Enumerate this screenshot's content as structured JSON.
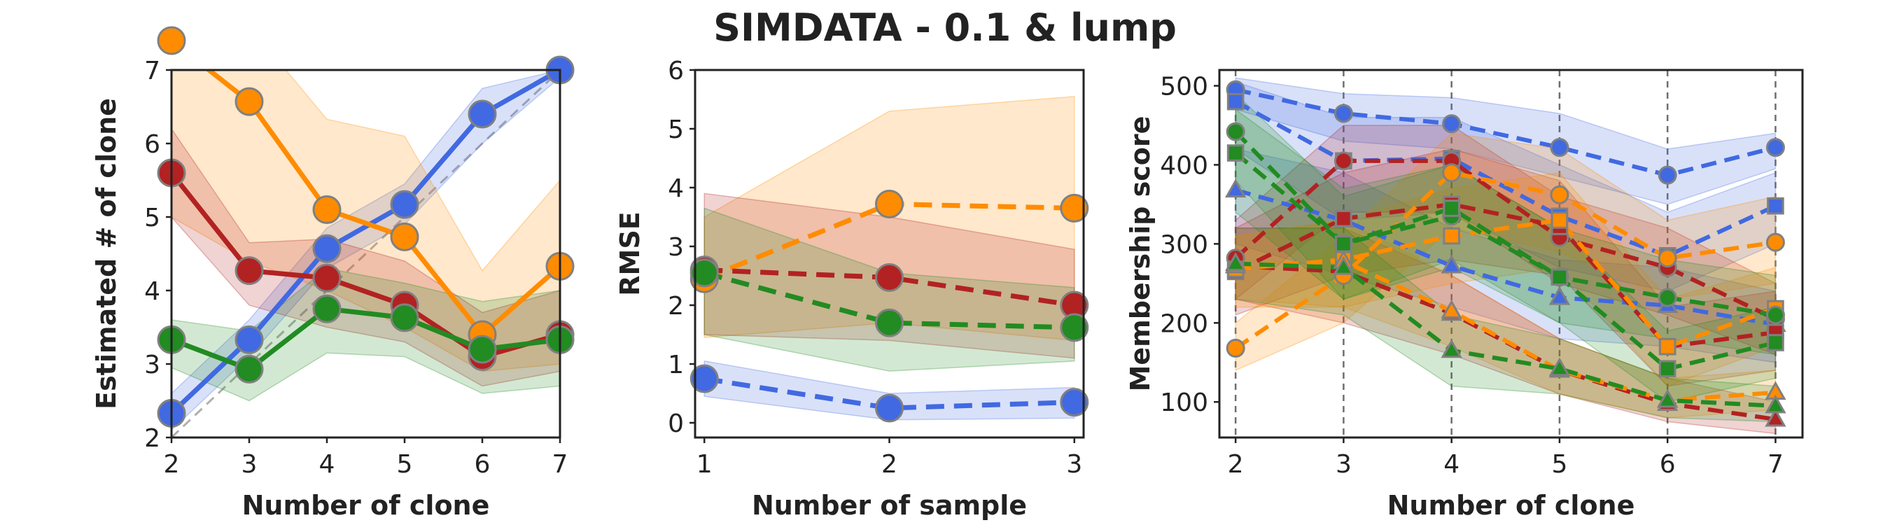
{
  "figure": {
    "title": "SIMDATA - 0.1 & lump"
  },
  "colors": {
    "blue": "#4169e1",
    "orange": "#ff8c00",
    "red": "#b22222",
    "green": "#228b22",
    "marker_edge": "#808080",
    "identity": "#b0b0b0"
  },
  "chart_data": [
    {
      "type": "line",
      "xlabel": "Number of clone",
      "ylabel": "Estimated # of clone",
      "xlim": [
        2,
        7
      ],
      "ylim": [
        2,
        7
      ],
      "xticks": [
        2,
        3,
        4,
        5,
        6,
        7
      ],
      "yticks": [
        2,
        3,
        4,
        5,
        6,
        7
      ],
      "grid": false,
      "identity_line": true,
      "series": [
        {
          "color": "blue",
          "linestyle": "solid",
          "x": [
            2,
            3,
            4,
            5,
            6,
            7
          ],
          "y": [
            2.33,
            3.33,
            4.57,
            5.17,
            6.4,
            7.0
          ],
          "lower": [
            2.1,
            3.1,
            4.3,
            4.9,
            6.0,
            6.9
          ],
          "upper": [
            2.6,
            3.6,
            4.85,
            5.45,
            6.75,
            7.0
          ]
        },
        {
          "color": "orange",
          "linestyle": "solid",
          "x": [
            2,
            3,
            4,
            5,
            6,
            7
          ],
          "y": [
            7.4,
            6.57,
            5.1,
            4.73,
            3.4,
            4.33
          ],
          "lower": [
            5.0,
            4.4,
            4.0,
            3.5,
            2.9,
            3.0
          ],
          "upper": [
            8.0,
            7.6,
            6.33,
            6.1,
            4.27,
            5.5
          ]
        },
        {
          "color": "red",
          "linestyle": "solid",
          "x": [
            2,
            3,
            4,
            5,
            6,
            7
          ],
          "y": [
            5.6,
            4.27,
            4.17,
            3.8,
            3.1,
            3.4
          ],
          "lower": [
            5.0,
            3.8,
            3.5,
            3.3,
            2.7,
            2.9
          ],
          "upper": [
            6.2,
            4.65,
            4.7,
            4.4,
            3.7,
            4.0
          ]
        },
        {
          "color": "green",
          "linestyle": "solid",
          "x": [
            2,
            3,
            4,
            5,
            6,
            7
          ],
          "y": [
            3.33,
            2.93,
            3.75,
            3.63,
            3.2,
            3.33
          ],
          "lower": [
            2.95,
            2.5,
            3.15,
            3.1,
            2.6,
            2.7
          ],
          "upper": [
            3.6,
            3.45,
            4.3,
            4.1,
            3.85,
            4.0
          ]
        }
      ]
    },
    {
      "type": "line",
      "xlabel": "Number of sample",
      "ylabel": "RMSE",
      "xlim": [
        0.95,
        3.05
      ],
      "ylim": [
        -0.25,
        6
      ],
      "xticks": [
        1,
        2,
        3
      ],
      "yticks": [
        0,
        1,
        2,
        3,
        4,
        5,
        6
      ],
      "grid": false,
      "series": [
        {
          "color": "orange",
          "linestyle": "dashed",
          "x": [
            1,
            2,
            3
          ],
          "y": [
            2.45,
            3.72,
            3.65
          ],
          "lower": [
            1.45,
            1.7,
            1.4
          ],
          "upper": [
            3.5,
            5.3,
            5.55
          ]
        },
        {
          "color": "red",
          "linestyle": "dashed",
          "x": [
            1,
            2,
            3
          ],
          "y": [
            2.6,
            2.47,
            2.0
          ],
          "lower": [
            1.5,
            1.4,
            1.1
          ],
          "upper": [
            3.9,
            3.5,
            2.95
          ]
        },
        {
          "color": "green",
          "linestyle": "dashed",
          "x": [
            1,
            2,
            3
          ],
          "y": [
            2.55,
            1.7,
            1.62
          ],
          "lower": [
            1.5,
            0.88,
            1.05
          ],
          "upper": [
            3.65,
            2.55,
            2.3
          ]
        },
        {
          "color": "blue",
          "linestyle": "dashed",
          "x": [
            1,
            2,
            3
          ],
          "y": [
            0.75,
            0.25,
            0.35
          ],
          "lower": [
            0.45,
            0.05,
            0.08
          ],
          "upper": [
            1.05,
            0.5,
            0.6
          ]
        }
      ]
    },
    {
      "type": "line",
      "xlabel": "Number of clone",
      "ylabel": "Membership score",
      "xlim": [
        1.85,
        7.25
      ],
      "ylim": [
        55,
        520
      ],
      "xticks": [
        2,
        3,
        4,
        5,
        6,
        7
      ],
      "yticks": [
        100,
        200,
        300,
        400,
        500
      ],
      "grid": false,
      "vlines": [
        2,
        3,
        4,
        5,
        6,
        7
      ],
      "series": [
        {
          "color": "blue",
          "marker": "circle",
          "linestyle": "dashed",
          "x": [
            2,
            3,
            4,
            5,
            6,
            7
          ],
          "y": [
            495,
            465,
            452,
            422,
            387,
            422
          ],
          "lower": [
            470,
            430,
            420,
            385,
            350,
            395
          ],
          "upper": [
            510,
            490,
            485,
            465,
            420,
            440
          ]
        },
        {
          "color": "blue",
          "marker": "square",
          "linestyle": "dashed",
          "x": [
            2,
            3,
            4,
            5,
            6,
            7
          ],
          "y": [
            480,
            405,
            408,
            335,
            285,
            348
          ],
          "lower": [
            420,
            330,
            340,
            270,
            240,
            300
          ],
          "upper": [
            505,
            460,
            460,
            400,
            340,
            390
          ]
        },
        {
          "color": "blue",
          "marker": "triangle",
          "linestyle": "dashed",
          "x": [
            2,
            3,
            4,
            5,
            6,
            7
          ],
          "y": [
            368,
            330,
            272,
            232,
            222,
            198
          ],
          "lower": [
            300,
            260,
            220,
            180,
            170,
            150
          ],
          "upper": [
            420,
            390,
            320,
            280,
            270,
            240
          ]
        },
        {
          "color": "red",
          "marker": "circle",
          "linestyle": "dashed",
          "x": [
            2,
            3,
            4,
            5,
            6,
            7
          ],
          "y": [
            282,
            405,
            405,
            308,
            270,
            205
          ],
          "lower": [
            230,
            340,
            340,
            250,
            210,
            160
          ],
          "upper": [
            330,
            450,
            450,
            360,
            320,
            250
          ]
        },
        {
          "color": "red",
          "marker": "square",
          "linestyle": "dashed",
          "x": [
            2,
            3,
            4,
            5,
            6,
            7
          ],
          "y": [
            265,
            332,
            350,
            322,
            170,
            188
          ],
          "lower": [
            210,
            260,
            280,
            260,
            120,
            140
          ],
          "upper": [
            320,
            390,
            420,
            380,
            220,
            240
          ]
        },
        {
          "color": "red",
          "marker": "triangle",
          "linestyle": "dashed",
          "x": [
            2,
            3,
            4,
            5,
            6,
            7
          ],
          "y": [
            272,
            265,
            212,
            140,
            98,
            78
          ],
          "lower": [
            230,
            200,
            160,
            110,
            75,
            60
          ],
          "upper": [
            320,
            320,
            260,
            180,
            130,
            100
          ]
        },
        {
          "color": "orange",
          "marker": "circle",
          "linestyle": "dashed",
          "x": [
            2,
            3,
            4,
            5,
            6,
            7
          ],
          "y": [
            168,
            260,
            390,
            362,
            282,
            302
          ],
          "lower": [
            140,
            200,
            320,
            290,
            230,
            250
          ],
          "upper": [
            200,
            310,
            440,
            420,
            330,
            360
          ]
        },
        {
          "color": "orange",
          "marker": "square",
          "linestyle": "dashed",
          "x": [
            2,
            3,
            4,
            5,
            6,
            7
          ],
          "y": [
            268,
            280,
            310,
            330,
            170,
            218
          ],
          "lower": [
            220,
            220,
            250,
            270,
            120,
            170
          ],
          "upper": [
            310,
            330,
            370,
            390,
            230,
            270
          ]
        },
        {
          "color": "orange",
          "marker": "triangle",
          "linestyle": "dashed",
          "x": [
            2,
            3,
            4,
            5,
            6,
            7
          ],
          "y": [
            272,
            278,
            215,
            140,
            102,
            112
          ],
          "lower": [
            230,
            220,
            170,
            110,
            80,
            90
          ],
          "upper": [
            310,
            330,
            260,
            180,
            130,
            140
          ]
        },
        {
          "color": "green",
          "marker": "circle",
          "linestyle": "dashed",
          "x": [
            2,
            3,
            4,
            5,
            6,
            7
          ],
          "y": [
            442,
            300,
            335,
            258,
            232,
            210
          ],
          "lower": [
            380,
            230,
            270,
            200,
            180,
            160
          ],
          "upper": [
            490,
            360,
            400,
            320,
            280,
            260
          ]
        },
        {
          "color": "green",
          "marker": "square",
          "linestyle": "dashed",
          "x": [
            2,
            3,
            4,
            5,
            6,
            7
          ],
          "y": [
            415,
            300,
            345,
            258,
            142,
            175
          ],
          "lower": [
            340,
            230,
            280,
            200,
            100,
            130
          ],
          "upper": [
            470,
            370,
            400,
            320,
            190,
            220
          ]
        },
        {
          "color": "green",
          "marker": "triangle",
          "linestyle": "dashed",
          "x": [
            2,
            3,
            4,
            5,
            6,
            7
          ],
          "y": [
            275,
            270,
            165,
            142,
            102,
            95
          ],
          "lower": [
            230,
            210,
            120,
            110,
            80,
            75
          ],
          "upper": [
            320,
            320,
            210,
            180,
            130,
            120
          ]
        }
      ]
    }
  ]
}
